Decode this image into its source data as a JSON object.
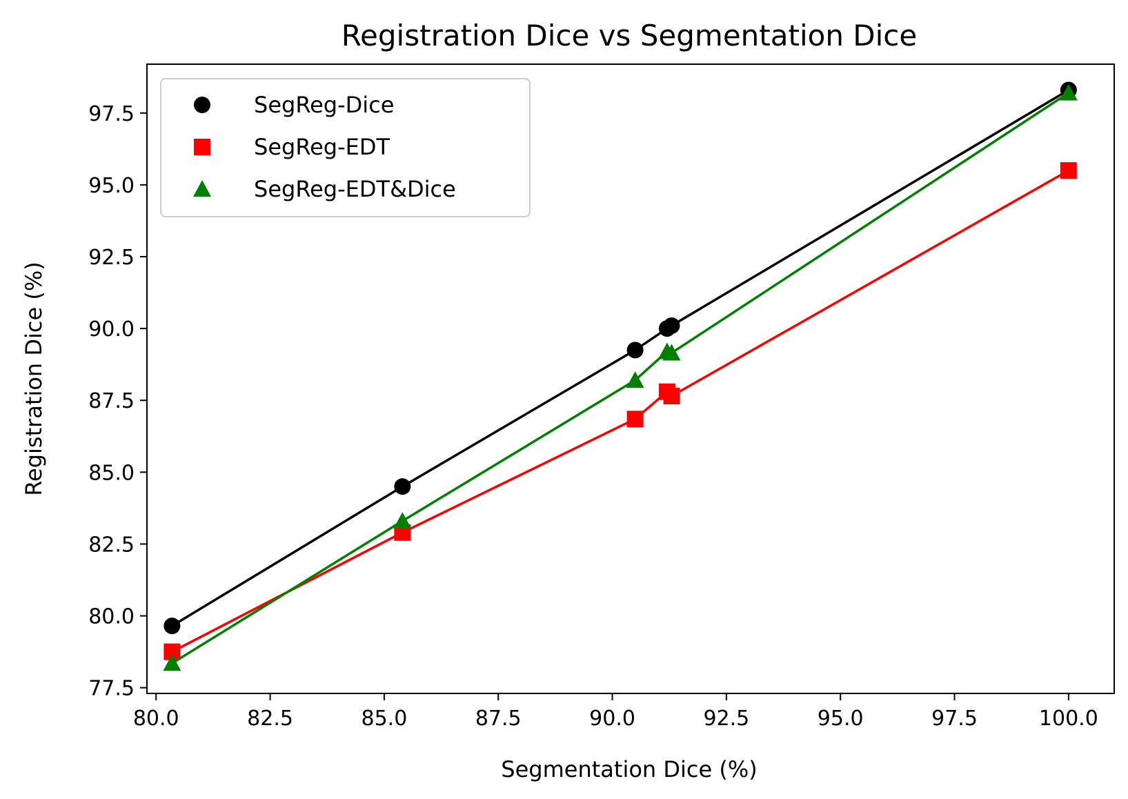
{
  "chart_data": {
    "type": "line",
    "title": "Registration Dice vs Segmentation Dice",
    "xlabel": "Segmentation Dice (%)",
    "ylabel": "Registration Dice (%)",
    "xlim": [
      79.8,
      101.0
    ],
    "ylim": [
      77.3,
      99.2
    ],
    "xticks": [
      "80.0",
      "82.5",
      "85.0",
      "87.5",
      "90.0",
      "92.5",
      "95.0",
      "97.5",
      "100.0"
    ],
    "yticks": [
      "77.5",
      "80.0",
      "82.5",
      "85.0",
      "87.5",
      "90.0",
      "92.5",
      "95.0",
      "97.5"
    ],
    "grid": false,
    "legend_position": "top-left",
    "series": [
      {
        "name": "SegReg-Dice",
        "color": "#000000",
        "marker": "circle",
        "points": [
          [
            80.35,
            79.65
          ],
          [
            85.4,
            84.5
          ],
          [
            90.5,
            89.25
          ],
          [
            91.2,
            90.0
          ],
          [
            91.3,
            90.1
          ],
          [
            100.0,
            98.3
          ]
        ]
      },
      {
        "name": "SegReg-EDT",
        "color": "#ff0000",
        "marker": "square",
        "points": [
          [
            80.35,
            78.75
          ],
          [
            85.4,
            82.9
          ],
          [
            90.5,
            86.85
          ],
          [
            91.2,
            87.8
          ],
          [
            91.3,
            87.65
          ],
          [
            100.0,
            95.5
          ]
        ]
      },
      {
        "name": "SegReg-EDT&Dice",
        "color": "#008000",
        "marker": "triangle",
        "points": [
          [
            80.35,
            78.35
          ],
          [
            85.4,
            83.3
          ],
          [
            90.5,
            88.2
          ],
          [
            91.2,
            89.2
          ],
          [
            91.3,
            89.15
          ],
          [
            100.0,
            98.2
          ]
        ]
      }
    ]
  }
}
